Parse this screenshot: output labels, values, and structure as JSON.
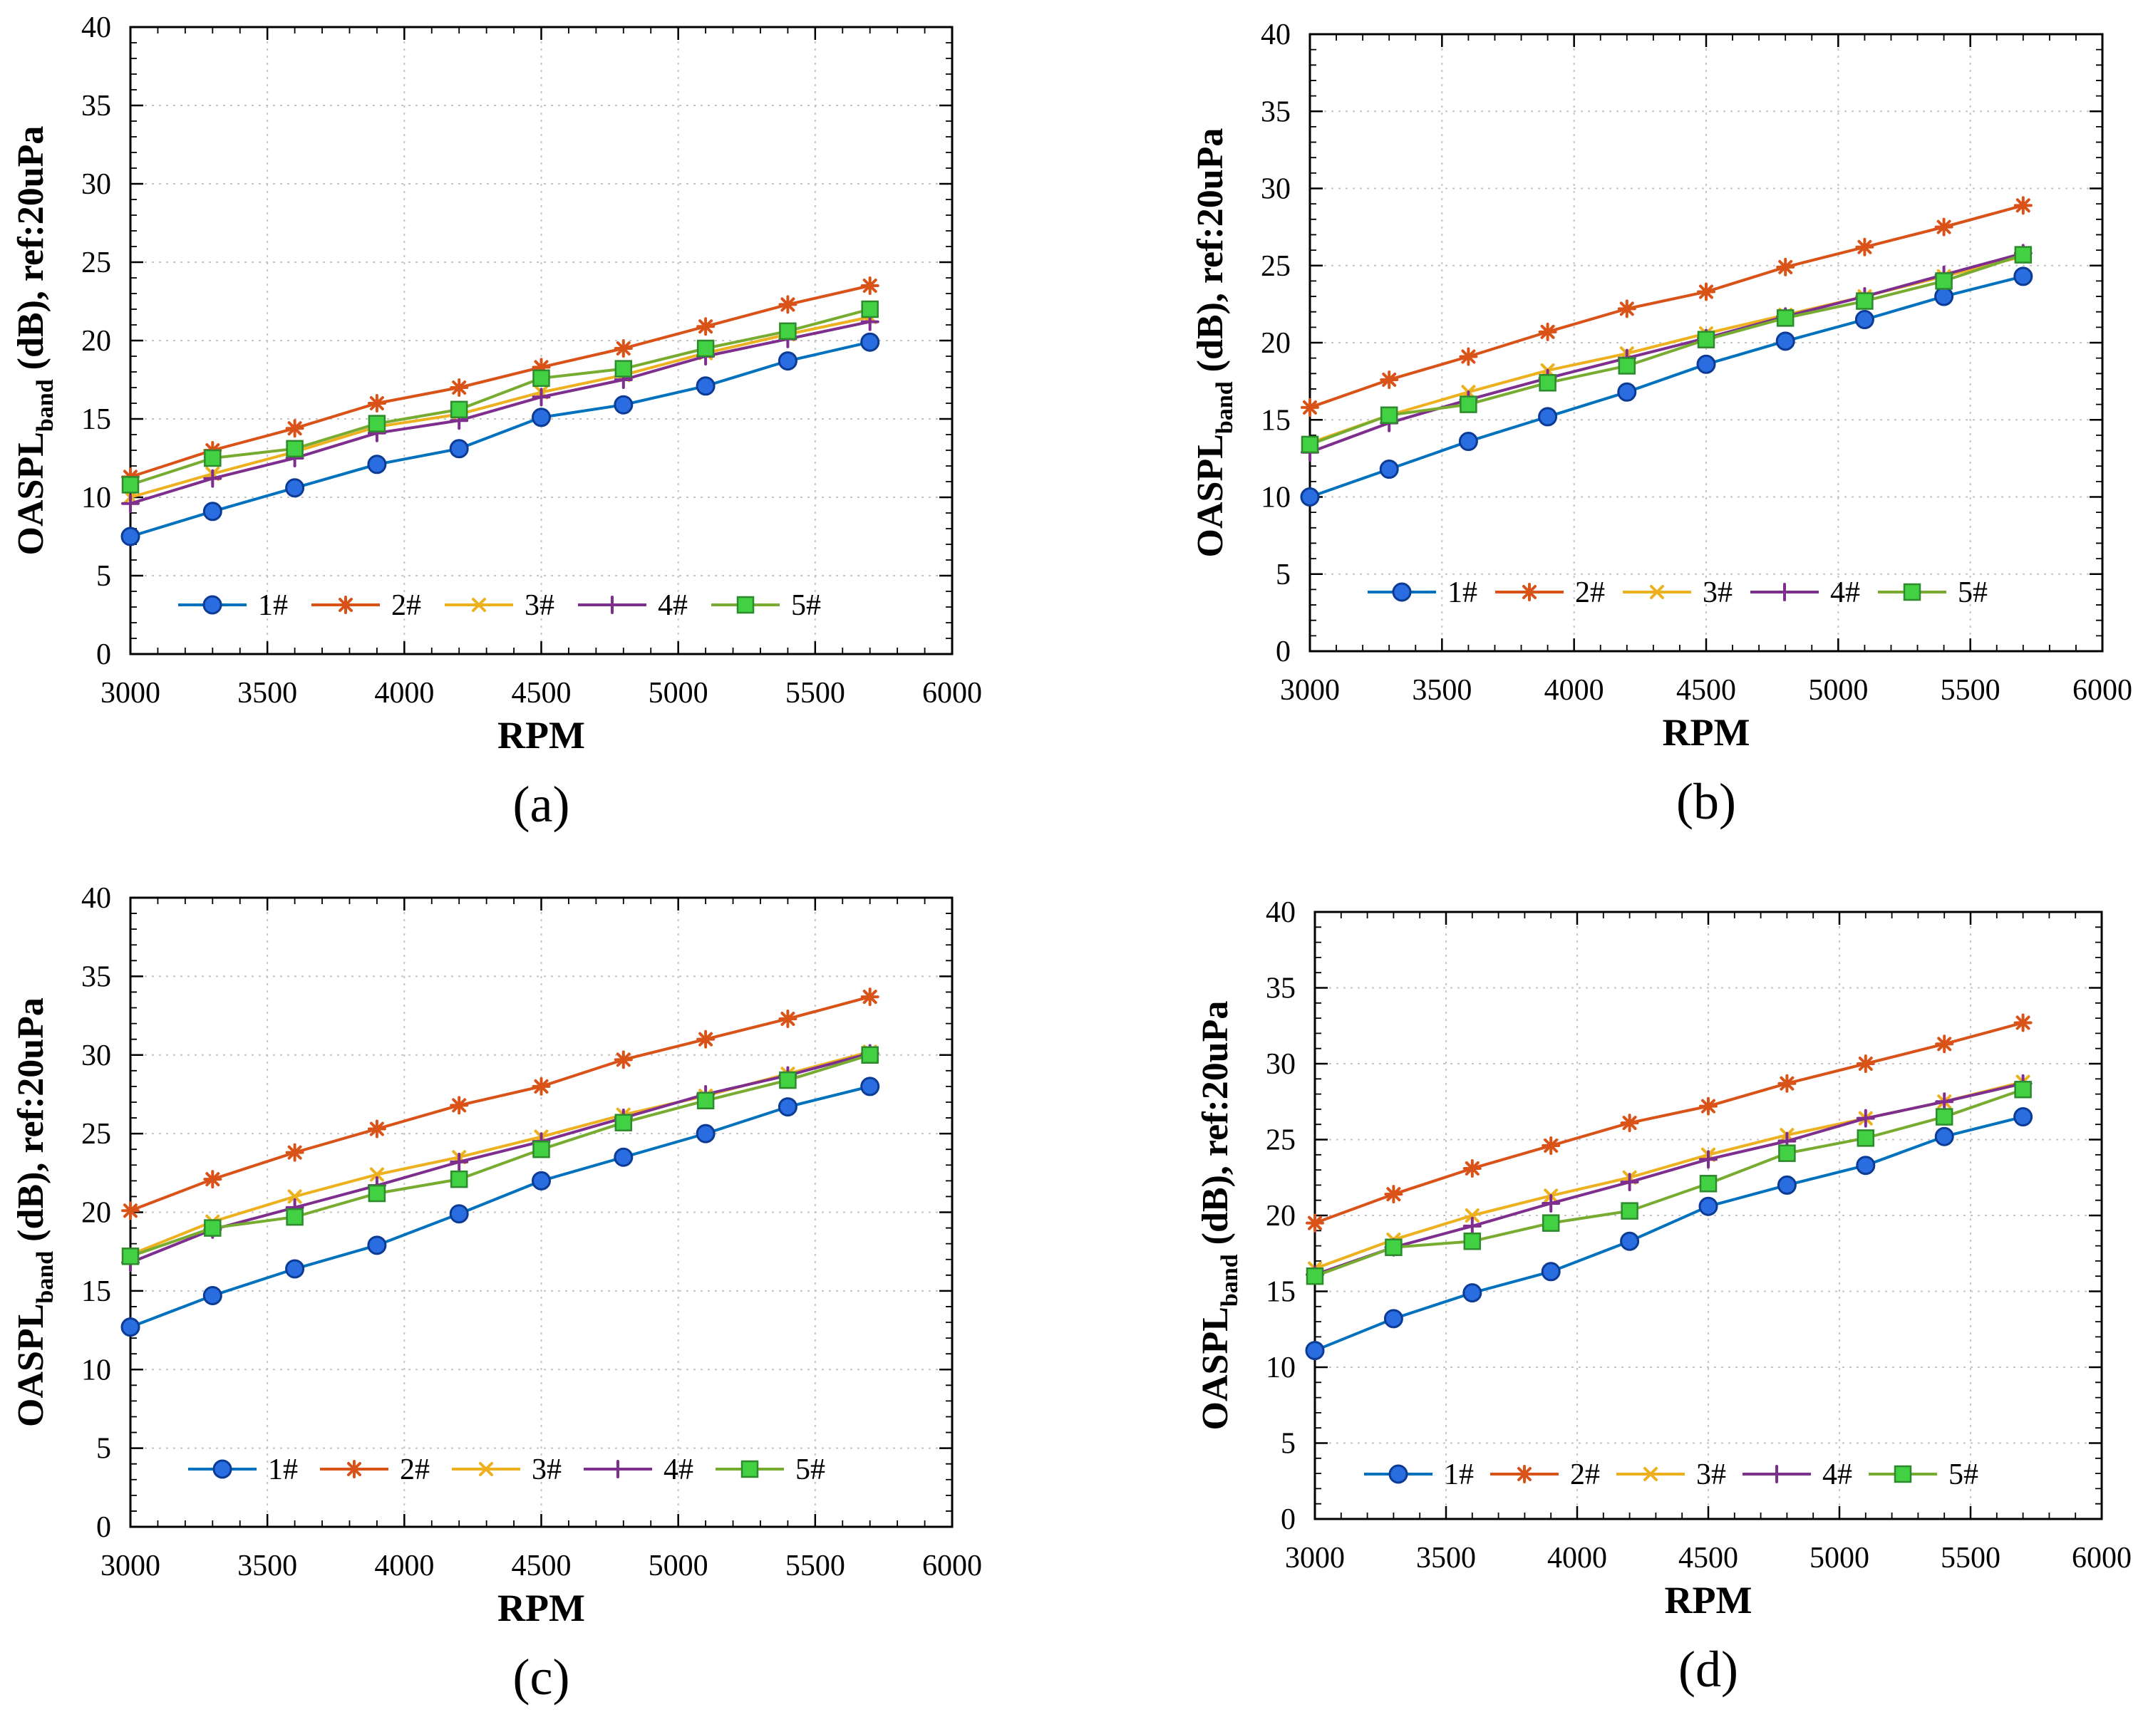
{
  "chart_data": [
    {
      "type": "line",
      "panel_label": "(a)",
      "xlabel": "RPM",
      "ylabel": {
        "main": "OASPL",
        "sub": "band",
        "rest": " (dB), ref:20uPa"
      },
      "xlim": [
        3000,
        6000
      ],
      "ylim": [
        0,
        40
      ],
      "xticks": [
        3000,
        3500,
        4000,
        4500,
        5000,
        5500,
        6000
      ],
      "yticks": [
        0,
        5,
        10,
        15,
        20,
        25,
        30,
        35,
        40
      ],
      "grid": true,
      "legend_position": "bottom-left",
      "x": [
        3000,
        3300,
        3600,
        3900,
        4200,
        4500,
        4800,
        5100,
        5400,
        5700
      ],
      "series": [
        {
          "name": "1#",
          "color": "#0072BD",
          "marker": "circle",
          "marker_color": "#2a6de0",
          "marker_edge": "#0b3b94",
          "values": [
            7.5,
            9.1,
            10.6,
            12.1,
            13.1,
            15.1,
            15.9,
            17.1,
            18.7,
            19.9
          ]
        },
        {
          "name": "2#",
          "color": "#D95319",
          "marker": "asterisk",
          "marker_color": "#D95319",
          "marker_edge": "#D95319",
          "values": [
            11.3,
            13.0,
            14.4,
            16.0,
            17.0,
            18.3,
            19.5,
            20.9,
            22.3,
            23.5
          ]
        },
        {
          "name": "3#",
          "color": "#EDB120",
          "marker": "cross",
          "marker_color": "#EDB120",
          "marker_edge": "#EDB120",
          "values": [
            10.0,
            11.5,
            12.9,
            14.5,
            15.3,
            16.7,
            17.8,
            19.2,
            20.4,
            21.5
          ]
        },
        {
          "name": "4#",
          "color": "#7E2F8E",
          "marker": "plus",
          "marker_color": "#7E2F8E",
          "marker_edge": "#7E2F8E",
          "values": [
            9.6,
            11.2,
            12.5,
            14.1,
            14.9,
            16.4,
            17.5,
            19.0,
            20.1,
            21.2
          ]
        },
        {
          "name": "5#",
          "color": "#77AC30",
          "marker": "square",
          "marker_color": "#42d142",
          "marker_edge": "#2d8a2d",
          "values": [
            10.8,
            12.5,
            13.1,
            14.7,
            15.6,
            17.6,
            18.2,
            19.5,
            20.6,
            22.0
          ]
        }
      ]
    },
    {
      "type": "line",
      "panel_label": "(b)",
      "xlabel": "RPM",
      "ylabel": {
        "main": "OASPL",
        "sub": "band",
        "rest": " (dB), ref:20uPa"
      },
      "xlim": [
        3000,
        6000
      ],
      "ylim": [
        0,
        40
      ],
      "xticks": [
        3000,
        3500,
        4000,
        4500,
        5000,
        5500,
        6000
      ],
      "yticks": [
        0,
        5,
        10,
        15,
        20,
        25,
        30,
        35,
        40
      ],
      "grid": true,
      "legend_position": "bottom-left",
      "x": [
        3000,
        3300,
        3600,
        3900,
        4200,
        4500,
        4800,
        5100,
        5400,
        5700
      ],
      "series": [
        {
          "name": "1#",
          "color": "#0072BD",
          "marker": "circle",
          "marker_color": "#2a6de0",
          "marker_edge": "#0b3b94",
          "values": [
            10.0,
            11.8,
            13.6,
            15.2,
            16.8,
            18.6,
            20.1,
            21.5,
            23.0,
            24.3
          ]
        },
        {
          "name": "2#",
          "color": "#D95319",
          "marker": "asterisk",
          "marker_color": "#D95319",
          "marker_edge": "#D95319",
          "values": [
            15.8,
            17.6,
            19.1,
            20.7,
            22.2,
            23.3,
            24.9,
            26.2,
            27.5,
            28.9
          ]
        },
        {
          "name": "3#",
          "color": "#EDB120",
          "marker": "cross",
          "marker_color": "#EDB120",
          "marker_edge": "#EDB120",
          "values": [
            13.5,
            15.3,
            16.8,
            18.2,
            19.3,
            20.6,
            21.8,
            23.0,
            24.3,
            25.6
          ]
        },
        {
          "name": "4#",
          "color": "#7E2F8E",
          "marker": "plus",
          "marker_color": "#7E2F8E",
          "marker_edge": "#7E2F8E",
          "values": [
            12.9,
            14.8,
            16.3,
            17.7,
            19.0,
            20.3,
            21.7,
            23.0,
            24.4,
            25.8
          ]
        },
        {
          "name": "5#",
          "color": "#77AC30",
          "marker": "square",
          "marker_color": "#42d142",
          "marker_edge": "#2d8a2d",
          "values": [
            13.4,
            15.3,
            16.0,
            17.4,
            18.5,
            20.2,
            21.6,
            22.7,
            24.0,
            25.7
          ]
        }
      ]
    },
    {
      "type": "line",
      "panel_label": "(c)",
      "xlabel": "RPM",
      "ylabel": {
        "main": "OASPL",
        "sub": "band",
        "rest": " (dB), ref:20uPa"
      },
      "xlim": [
        3000,
        6000
      ],
      "ylim": [
        0,
        40
      ],
      "xticks": [
        3000,
        3500,
        4000,
        4500,
        5000,
        5500,
        6000
      ],
      "yticks": [
        0,
        5,
        10,
        15,
        20,
        25,
        30,
        35,
        40
      ],
      "grid": true,
      "legend_position": "bottom-left",
      "x": [
        3000,
        3300,
        3600,
        3900,
        4200,
        4500,
        4800,
        5100,
        5400,
        5700
      ],
      "series": [
        {
          "name": "1#",
          "color": "#0072BD",
          "marker": "circle",
          "marker_color": "#2a6de0",
          "marker_edge": "#0b3b94",
          "values": [
            12.7,
            14.7,
            16.4,
            17.9,
            19.9,
            22.0,
            23.5,
            25.0,
            26.7,
            28.0
          ]
        },
        {
          "name": "2#",
          "color": "#D95319",
          "marker": "asterisk",
          "marker_color": "#D95319",
          "marker_edge": "#D95319",
          "values": [
            20.1,
            22.1,
            23.8,
            25.3,
            26.8,
            28.0,
            29.7,
            31.0,
            32.3,
            33.7
          ]
        },
        {
          "name": "3#",
          "color": "#EDB120",
          "marker": "cross",
          "marker_color": "#EDB120",
          "marker_edge": "#EDB120",
          "values": [
            17.3,
            19.4,
            21.0,
            22.4,
            23.5,
            24.8,
            26.2,
            27.4,
            28.8,
            30.2
          ]
        },
        {
          "name": "4#",
          "color": "#7E2F8E",
          "marker": "plus",
          "marker_color": "#7E2F8E",
          "marker_edge": "#7E2F8E",
          "values": [
            16.8,
            18.9,
            20.3,
            21.7,
            23.2,
            24.5,
            26.0,
            27.5,
            28.7,
            30.1
          ]
        },
        {
          "name": "5#",
          "color": "#77AC30",
          "marker": "square",
          "marker_color": "#42d142",
          "marker_edge": "#2d8a2d",
          "values": [
            17.2,
            19.0,
            19.7,
            21.2,
            22.1,
            24.0,
            25.7,
            27.1,
            28.4,
            30.0
          ]
        }
      ]
    },
    {
      "type": "line",
      "panel_label": "(d)",
      "xlabel": "RPM",
      "ylabel": {
        "main": "OASPL",
        "sub": "band",
        "rest": " (dB), ref:20uPa"
      },
      "xlim": [
        3000,
        6000
      ],
      "ylim": [
        0,
        40
      ],
      "xticks": [
        3000,
        3500,
        4000,
        4500,
        5000,
        5500,
        6000
      ],
      "yticks": [
        0,
        5,
        10,
        15,
        20,
        25,
        30,
        35,
        40
      ],
      "grid": true,
      "legend_position": "bottom-left",
      "x": [
        3000,
        3300,
        3600,
        3900,
        4200,
        4500,
        4800,
        5100,
        5400,
        5700
      ],
      "series": [
        {
          "name": "1#",
          "color": "#0072BD",
          "marker": "circle",
          "marker_color": "#2a6de0",
          "marker_edge": "#0b3b94",
          "values": [
            11.1,
            13.2,
            14.9,
            16.3,
            18.3,
            20.6,
            22.0,
            23.3,
            25.2,
            26.5
          ]
        },
        {
          "name": "2#",
          "color": "#D95319",
          "marker": "asterisk",
          "marker_color": "#D95319",
          "marker_edge": "#D95319",
          "values": [
            19.5,
            21.4,
            23.1,
            24.6,
            26.1,
            27.2,
            28.7,
            30.0,
            31.3,
            32.7
          ]
        },
        {
          "name": "3#",
          "color": "#EDB120",
          "marker": "cross",
          "marker_color": "#EDB120",
          "marker_edge": "#EDB120",
          "values": [
            16.5,
            18.4,
            20.0,
            21.3,
            22.5,
            24.0,
            25.3,
            26.4,
            27.5,
            28.8
          ]
        },
        {
          "name": "4#",
          "color": "#7E2F8E",
          "marker": "plus",
          "marker_color": "#7E2F8E",
          "marker_edge": "#7E2F8E",
          "values": [
            16.1,
            17.9,
            19.3,
            20.8,
            22.2,
            23.7,
            24.9,
            26.4,
            27.5,
            28.7
          ]
        },
        {
          "name": "5#",
          "color": "#77AC30",
          "marker": "square",
          "marker_color": "#42d142",
          "marker_edge": "#2d8a2d",
          "values": [
            16.0,
            17.9,
            18.3,
            19.5,
            20.3,
            22.1,
            24.1,
            25.1,
            26.5,
            28.3
          ]
        }
      ]
    }
  ]
}
